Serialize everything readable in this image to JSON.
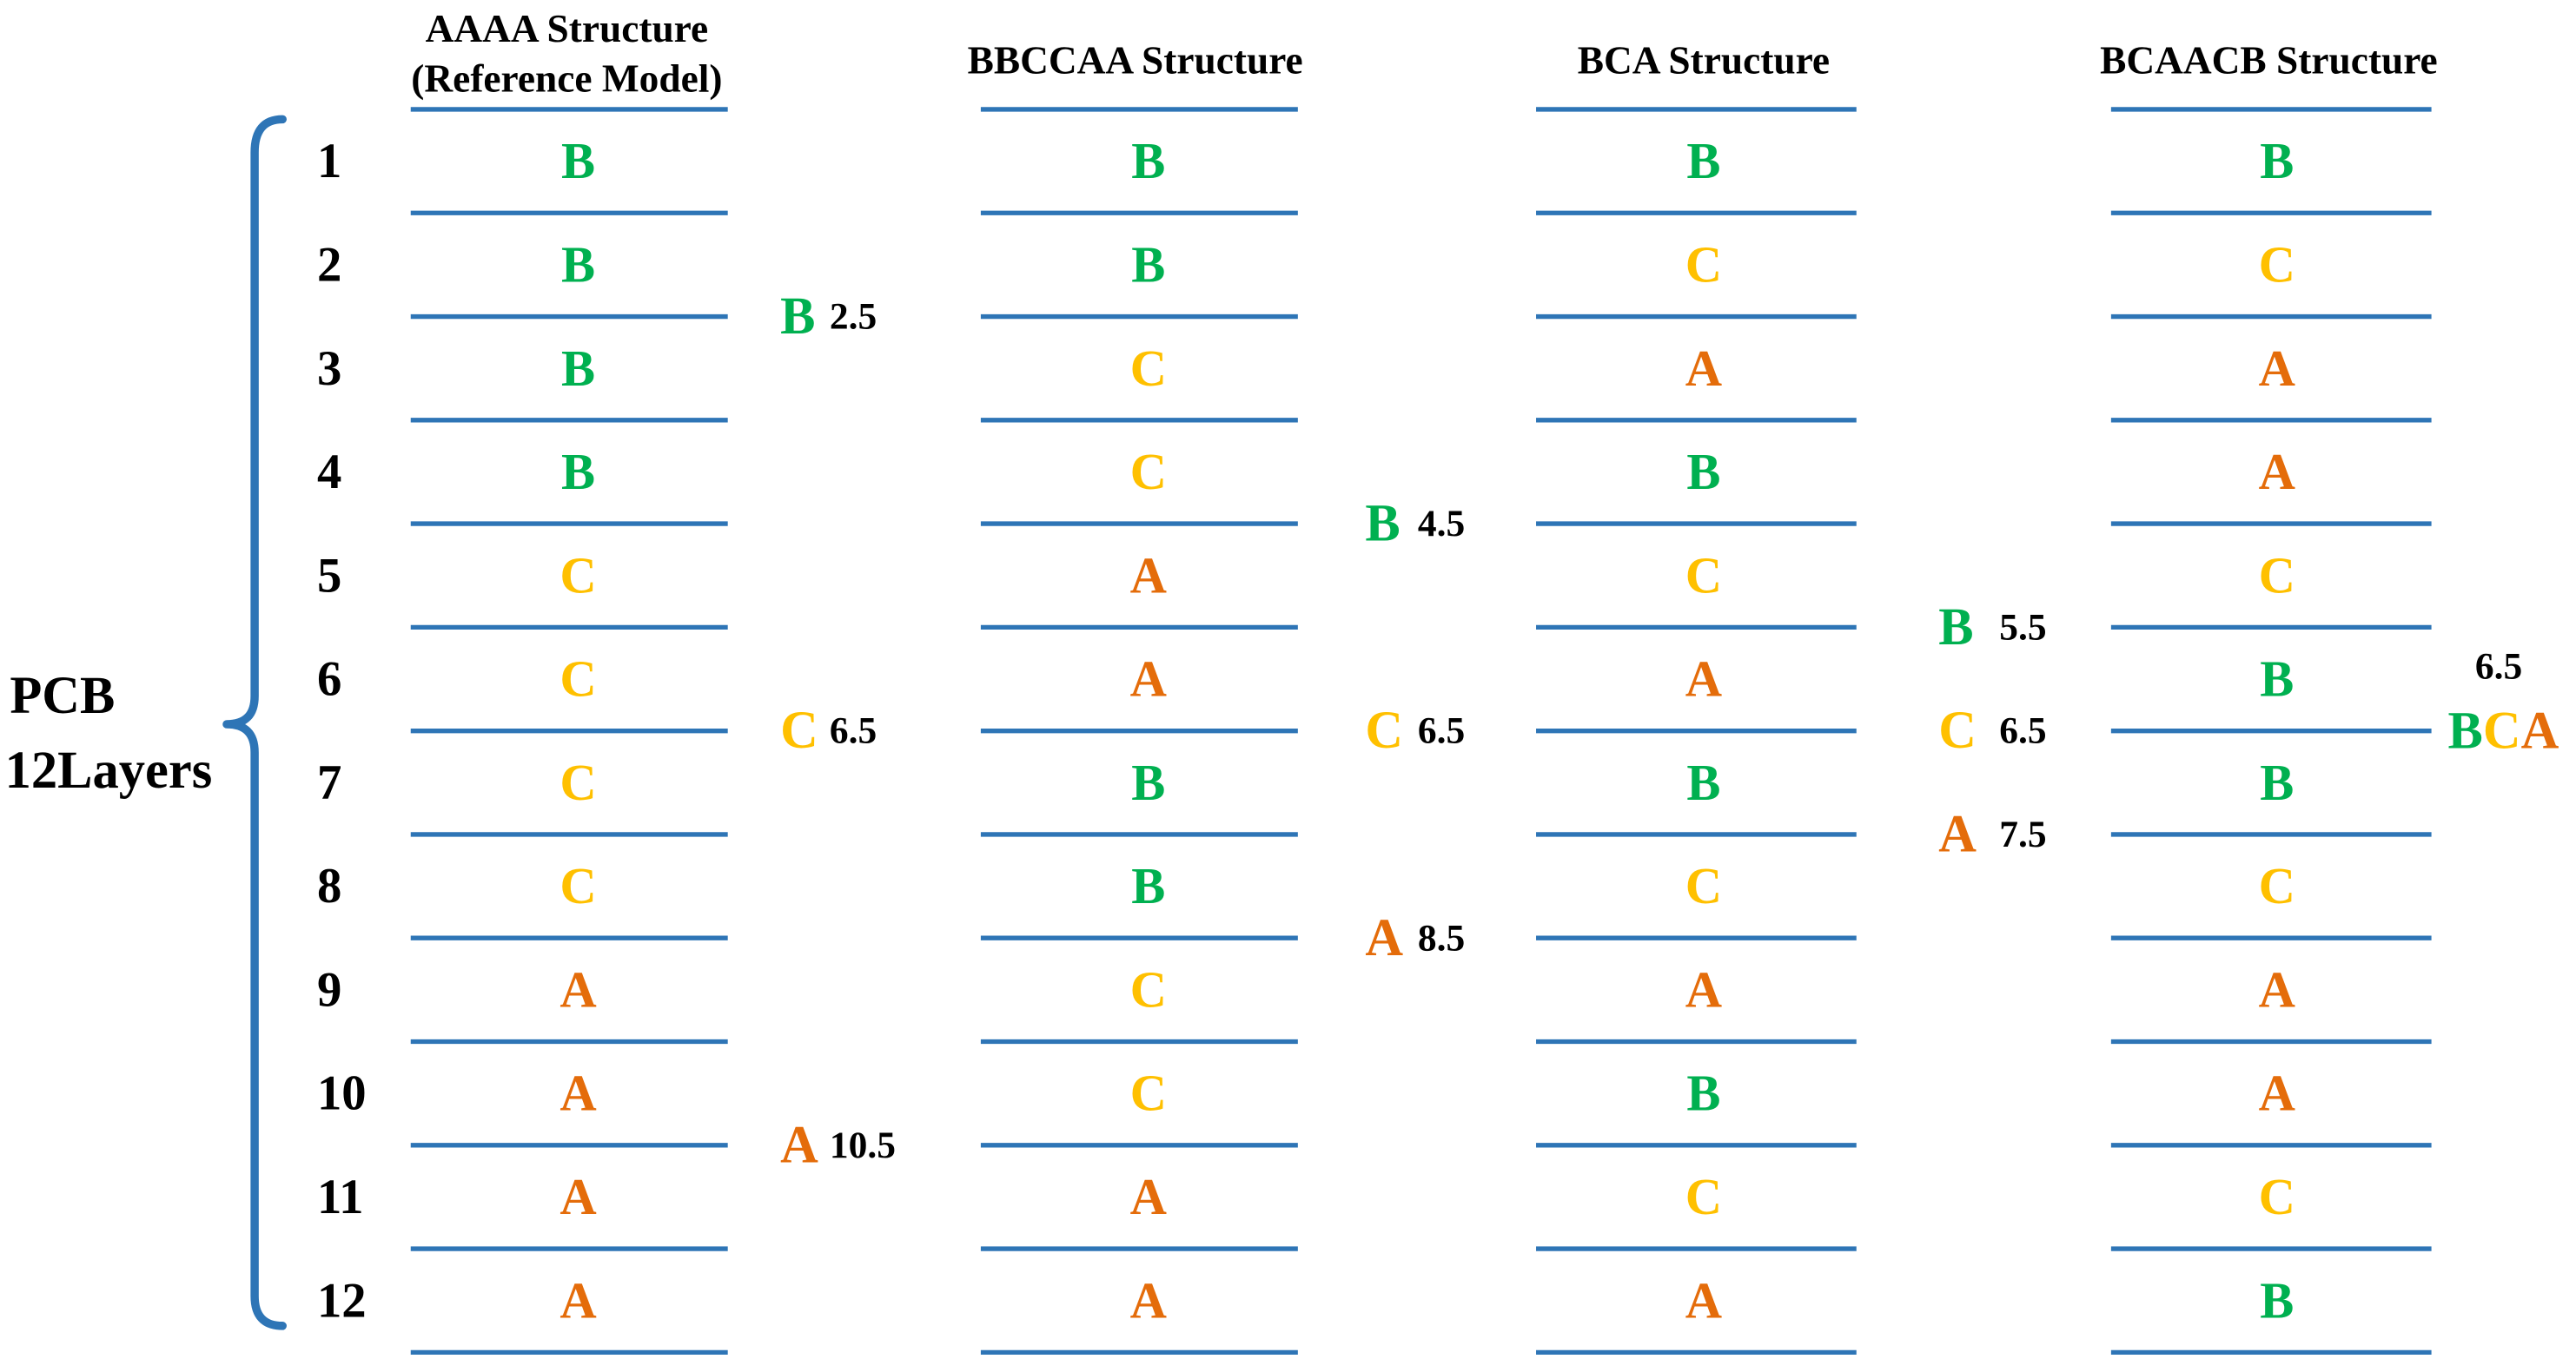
{
  "pcb_label": {
    "line1": "PCB",
    "line2": "12Layers"
  },
  "layer_numbers": [
    "1",
    "2",
    "3",
    "4",
    "5",
    "6",
    "7",
    "8",
    "9",
    "10",
    "11",
    "12"
  ],
  "colors": {
    "B": "#00B050",
    "C": "#FFC000",
    "A": "#E46C0A",
    "layer_line": "#2E75B6",
    "brace": "#2E75B6"
  },
  "structures": [
    {
      "title": [
        "AAAA Structure",
        "(Reference Model)"
      ],
      "layers": [
        "B",
        "B",
        "B",
        "B",
        "C",
        "C",
        "C",
        "C",
        "A",
        "A",
        "A",
        "A"
      ],
      "annotations": [
        {
          "letters": [
            "B"
          ],
          "value": "2.5"
        },
        {
          "letters": [
            "C"
          ],
          "value": "6.5"
        },
        {
          "letters": [
            "A"
          ],
          "value": "10.5"
        }
      ]
    },
    {
      "title": [
        "BBCCAA Structure"
      ],
      "layers": [
        "B",
        "B",
        "C",
        "C",
        "A",
        "A",
        "B",
        "B",
        "C",
        "C",
        "A",
        "A"
      ],
      "annotations": [
        {
          "letters": [
            "B"
          ],
          "value": "4.5"
        },
        {
          "letters": [
            "C"
          ],
          "value": "6.5"
        },
        {
          "letters": [
            "A"
          ],
          "value": "8.5"
        }
      ]
    },
    {
      "title": [
        "BCA Structure"
      ],
      "layers": [
        "B",
        "C",
        "A",
        "B",
        "C",
        "A",
        "B",
        "C",
        "A",
        "B",
        "C",
        "A"
      ],
      "annotations": [
        {
          "letters": [
            "B"
          ],
          "value": "5.5"
        },
        {
          "letters": [
            "C"
          ],
          "value": "6.5"
        },
        {
          "letters": [
            "A"
          ],
          "value": "7.5"
        }
      ]
    },
    {
      "title": [
        "BCAACB Structure"
      ],
      "layers": [
        "B",
        "C",
        "A",
        "A",
        "C",
        "B",
        "B",
        "C",
        "A",
        "A",
        "C",
        "B"
      ],
      "annotations": [
        {
          "letters": [
            "B",
            "C",
            "A"
          ],
          "value": "6.5"
        }
      ]
    }
  ]
}
